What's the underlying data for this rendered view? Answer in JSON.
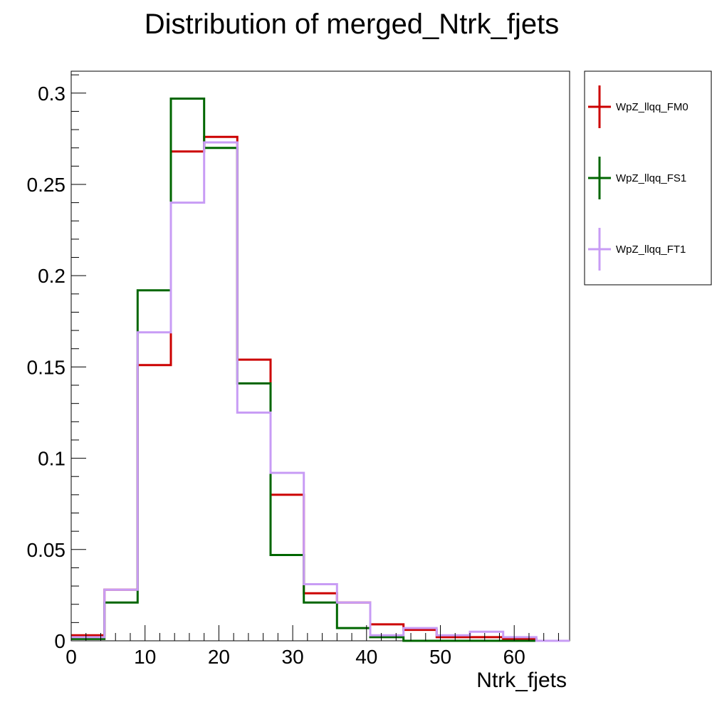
{
  "chart_data": {
    "type": "histogram-step",
    "title": "Distribution of merged_Ntrk_fjets",
    "xlabel": "Ntrk_fjets",
    "ylabel": "",
    "xlim": [
      0,
      67.5
    ],
    "ylim": [
      0,
      0.312
    ],
    "bin_edges": [
      0,
      4.5,
      9,
      13.5,
      18,
      22.5,
      27,
      31.5,
      36,
      40.5,
      45,
      49.5,
      54,
      58.5,
      63,
      67.5
    ],
    "x_ticks": [
      "0",
      "10",
      "20",
      "30",
      "40",
      "50",
      "60"
    ],
    "x_tick_values": [
      0,
      10,
      20,
      30,
      40,
      50,
      60
    ],
    "y_ticks": [
      "0",
      "0.05",
      "0.1",
      "0.15",
      "0.2",
      "0.25",
      "0.3"
    ],
    "y_tick_values": [
      0,
      0.05,
      0.1,
      0.15,
      0.2,
      0.25,
      0.3
    ],
    "legend_position": "outside-right-top",
    "series": [
      {
        "name": "WpZ_llqq_FM0",
        "color": "#cc0000",
        "values": [
          0.003,
          0.028,
          0.151,
          0.268,
          0.276,
          0.154,
          0.08,
          0.026,
          0.021,
          0.009,
          0.006,
          0.002,
          0.002,
          0.001,
          0.0
        ]
      },
      {
        "name": "WpZ_llqq_FS1",
        "color": "#006600",
        "values": [
          0.001,
          0.021,
          0.192,
          0.297,
          0.27,
          0.141,
          0.047,
          0.021,
          0.007,
          0.002,
          0.0,
          0.0,
          0.0,
          0.0,
          0.0
        ]
      },
      {
        "name": "WpZ_llqq_FT1",
        "color": "#c89cf5",
        "values": [
          0.002,
          0.028,
          0.169,
          0.24,
          0.273,
          0.125,
          0.092,
          0.031,
          0.021,
          0.003,
          0.007,
          0.003,
          0.005,
          0.002,
          0.0
        ]
      }
    ]
  }
}
